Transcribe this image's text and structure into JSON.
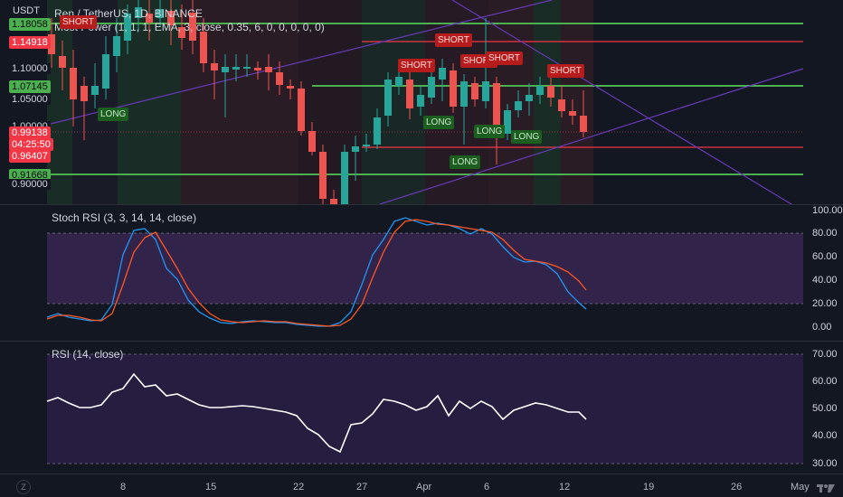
{
  "main": {
    "symbol_title": "Ren / TetherUS, 1D, BINANCE",
    "currency": "USDT",
    "indicator_legend": "Most Power (1, 1, 1, EMA, 3, close, 0.35, 6, 0, 0, 0, 0, 0)",
    "price_axis": [
      "1.10000",
      "1.05000",
      "1.00000",
      "0.90000"
    ],
    "highlight_prices": {
      "p1": "1.18058",
      "p2": "1.14918",
      "p3": "1.07145",
      "p4": "0.99138",
      "countdown": "04:25:50",
      "p5": "0.96407",
      "p6": "0.91668"
    },
    "signals": [
      "SHORT",
      "SHORT",
      "SHORT",
      "SHORT",
      "SHORT",
      "SHORT",
      "LONG",
      "LONG",
      "LONG",
      "LONG",
      "LONG"
    ]
  },
  "stoch": {
    "legend": "Stoch RSI (3, 3, 14, 14, close)",
    "axis": [
      "100.00",
      "80.00",
      "60.00",
      "40.00",
      "20.00",
      "0.00"
    ],
    "k_color": "#2196f3",
    "d_color": "#ff5722",
    "band_color": "#7e57c2"
  },
  "rsi": {
    "legend": "RSI (14, close)",
    "axis": [
      "70.00",
      "60.00",
      "50.00",
      "40.00",
      "30.00"
    ],
    "line_color": "#ffffff"
  },
  "time_axis": [
    "8",
    "15",
    "22",
    "27",
    "Apr",
    "6",
    "12",
    "19",
    "26",
    "May"
  ],
  "colors": {
    "up": "#26a69a",
    "down": "#ef5350",
    "accent_green": "#4caf50",
    "accent_red": "#f23645"
  },
  "icons": {
    "timezone_button": "Z",
    "logo": "tv-logo-icon"
  }
}
